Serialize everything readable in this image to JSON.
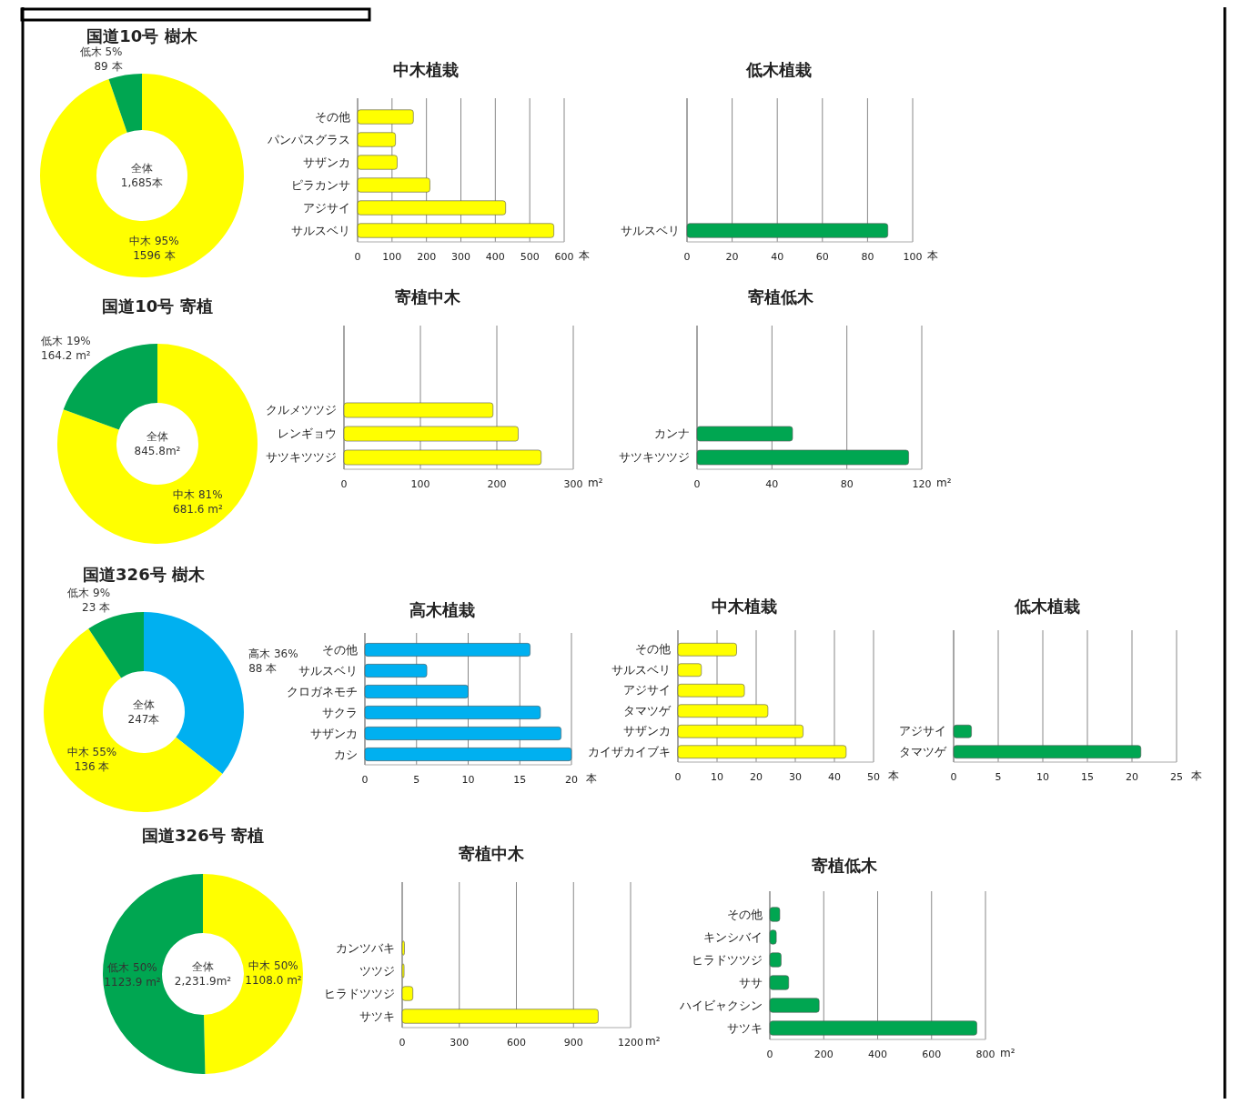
{
  "chart_data": [
    {
      "type": "donut",
      "title": "国道10号  樹木",
      "categories": [
        "中木",
        "低木"
      ],
      "values": [
        1596,
        89
      ],
      "colors": [
        "#ffff00",
        "#00a651"
      ],
      "value_labels": [
        "95%\n1596 本",
        "5%\n89 本"
      ],
      "annotations": [
        "全体\n1,685本"
      ]
    },
    {
      "type": "bar",
      "orientation": "horizontal",
      "title": "中木植栽",
      "categories": [
        "その他",
        "パンパスグラス",
        "サザンカ",
        "ピラカンサ",
        "アジサイ",
        "サルスベリ"
      ],
      "values": [
        162,
        110,
        115,
        210,
        430,
        570
      ],
      "color": "#ffff00",
      "xlim": [
        0,
        600
      ],
      "xticks": [
        0,
        100,
        200,
        300,
        400,
        500,
        600
      ],
      "xlabel": "本",
      "grid": "x"
    },
    {
      "type": "bar",
      "orientation": "horizontal",
      "title": "低木植栽",
      "categories": [
        "サルスベリ"
      ],
      "values": [
        89
      ],
      "color": "#00a651",
      "xlim": [
        0,
        100
      ],
      "xticks": [
        0,
        20,
        40,
        60,
        80,
        100
      ],
      "xlabel": "本",
      "grid": "x"
    },
    {
      "type": "donut",
      "title": "国道10号 寄植",
      "categories": [
        "中木",
        "低木"
      ],
      "values": [
        681.6,
        164.2
      ],
      "colors": [
        "#ffff00",
        "#00a651"
      ],
      "value_labels": [
        "81%\n681.6 m²",
        "19%\n164.2 m²"
      ],
      "annotations": [
        "全体\n845.8m²"
      ]
    },
    {
      "type": "bar",
      "orientation": "horizontal",
      "title": "寄植中木",
      "categories": [
        "クルメツツジ",
        "レンギョウ",
        "サツキツツジ"
      ],
      "values": [
        195,
        228,
        258
      ],
      "color": "#ffff00",
      "xlim": [
        0,
        300
      ],
      "xticks": [
        0,
        100,
        200,
        300
      ],
      "xlabel": "m²",
      "grid": "x"
    },
    {
      "type": "bar",
      "orientation": "horizontal",
      "title": "寄植低木",
      "categories": [
        "カンナ",
        "サツキツツジ"
      ],
      "values": [
        51,
        113
      ],
      "color": "#00a651",
      "xlim": [
        0,
        120
      ],
      "xticks": [
        0,
        40,
        80,
        120
      ],
      "xlabel": "m²",
      "grid": "x"
    },
    {
      "type": "donut",
      "title": "国道326号  樹木",
      "categories": [
        "高木",
        "中木",
        "低木"
      ],
      "values": [
        88,
        136,
        23
      ],
      "colors": [
        "#00b0f0",
        "#ffff00",
        "#00a651"
      ],
      "value_labels": [
        "36%\n88 本",
        "55%\n136 本",
        "9%\n23 本"
      ],
      "annotations": [
        "全体\n247本"
      ]
    },
    {
      "type": "bar",
      "orientation": "horizontal",
      "title": "高木植栽",
      "categories": [
        "その他",
        "サルスベリ",
        "クロガネモチ",
        "サクラ",
        "サザンカ",
        "カシ"
      ],
      "values": [
        16,
        6,
        10,
        17,
        19,
        20
      ],
      "color": "#00b0f0",
      "xlim": [
        0,
        20
      ],
      "xticks": [
        0,
        5,
        10,
        15,
        20
      ],
      "xlabel": "本",
      "grid": "x"
    },
    {
      "type": "bar",
      "orientation": "horizontal",
      "title": "中木植栽",
      "categories": [
        "その他",
        "サルスベリ",
        "アジサイ",
        "タマツゲ",
        "サザンカ",
        "カイザカイブキ"
      ],
      "values": [
        15,
        6,
        17,
        23,
        32,
        43
      ],
      "color": "#ffff00",
      "xlim": [
        0,
        50
      ],
      "xticks": [
        0,
        10,
        20,
        30,
        40,
        50
      ],
      "xlabel": "本",
      "grid": "x"
    },
    {
      "type": "bar",
      "orientation": "horizontal",
      "title": "低木植栽",
      "categories": [
        "アジサイ",
        "タマツゲ"
      ],
      "values": [
        2,
        21
      ],
      "color": "#00a651",
      "xlim": [
        0,
        25
      ],
      "xticks": [
        0,
        5,
        10,
        15,
        20,
        25
      ],
      "xlabel": "本",
      "grid": "x"
    },
    {
      "type": "donut",
      "title": "国道326号 寄植",
      "categories": [
        "中木",
        "低木"
      ],
      "values": [
        1108.0,
        1123.9
      ],
      "colors": [
        "#ffff00",
        "#00a651"
      ],
      "value_labels": [
        "50%\n1108.0 m²",
        "50%\n1123.9 m²"
      ],
      "annotations": [
        "全体\n2,231.9m²"
      ]
    },
    {
      "type": "bar",
      "orientation": "horizontal",
      "title": "寄植中木",
      "categories": [
        "カンツバキ",
        "ツツジ",
        "ヒラドツツジ",
        "サツキ"
      ],
      "values": [
        12,
        10,
        56,
        1030
      ],
      "color": "#ffff00",
      "xlim": [
        0,
        1200
      ],
      "xticks": [
        0,
        300,
        600,
        900,
        1200
      ],
      "xlabel": "m²",
      "grid": "x"
    },
    {
      "type": "bar",
      "orientation": "horizontal",
      "title": "寄植低木",
      "categories": [
        "その他",
        "キンシバイ",
        "ヒラドツツジ",
        "ササ",
        "ハイビャクシン",
        "サツキ"
      ],
      "values": [
        37,
        24,
        42,
        70,
        183,
        768
      ],
      "color": "#00a651",
      "xlim": [
        0,
        800
      ],
      "xticks": [
        0,
        200,
        400,
        600,
        800
      ],
      "xlabel": "m²",
      "grid": "x"
    }
  ]
}
